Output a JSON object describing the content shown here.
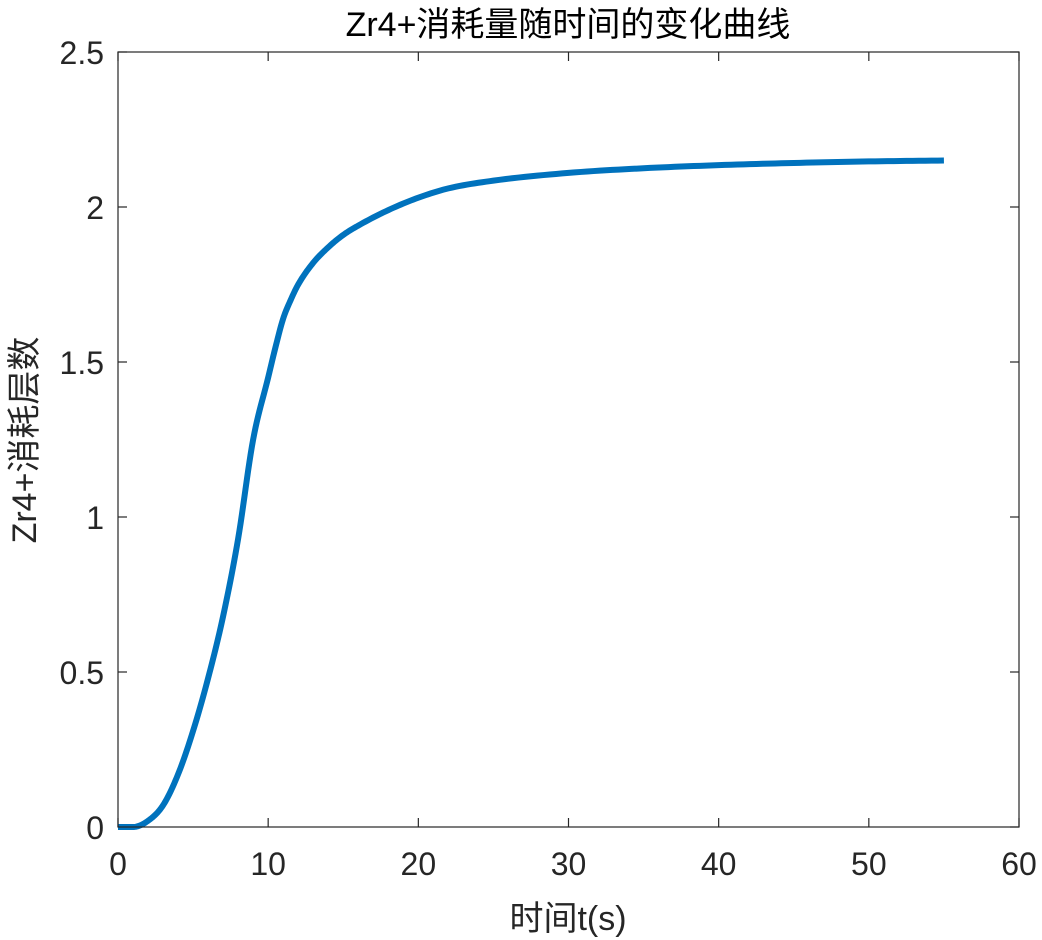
{
  "chart_data": {
    "type": "line",
    "title": "Zr4+消耗量随时间的变化曲线",
    "xlabel": "时间t(s)",
    "ylabel": "Zr4+消耗层数",
    "xlim": [
      0,
      60
    ],
    "ylim": [
      0,
      2.5
    ],
    "xticks": [
      0,
      10,
      20,
      30,
      40,
      50,
      60
    ],
    "yticks": [
      0,
      0.5,
      1,
      1.5,
      2,
      2.5
    ],
    "xtick_labels": [
      "0",
      "10",
      "20",
      "30",
      "40",
      "50",
      "60"
    ],
    "ytick_labels": [
      "0",
      "0.5",
      "1",
      "1.5",
      "2",
      "2.5"
    ],
    "grid": false,
    "series": [
      {
        "color": "#0072BD",
        "x": [
          0,
          1,
          2,
          3,
          4,
          5,
          6,
          7,
          8,
          9,
          10,
          10.5,
          11,
          11.5,
          12,
          13,
          14,
          15,
          16,
          18,
          20,
          22,
          25,
          30,
          35,
          40,
          45,
          50,
          55
        ],
        "y": [
          0,
          0,
          0.02,
          0.07,
          0.17,
          0.31,
          0.48,
          0.68,
          0.93,
          1.25,
          1.45,
          1.55,
          1.64,
          1.7,
          1.75,
          1.82,
          1.87,
          1.91,
          1.94,
          1.99,
          2.03,
          2.06,
          2.085,
          2.11,
          2.125,
          2.135,
          2.142,
          2.147,
          2.15
        ]
      }
    ]
  }
}
